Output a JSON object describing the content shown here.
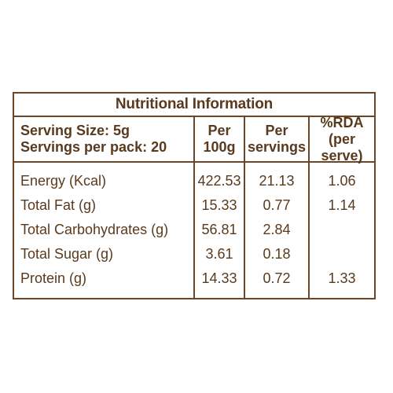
{
  "title": "Nutritional Information",
  "header": {
    "serving_size": "Serving Size: 5g",
    "servings_per_pack": "Servings per pack: 20",
    "col1_line1": "Per",
    "col1_line2": "100g",
    "col2_line1": "Per",
    "col2_line2": "servings",
    "col3_line1": "%RDA",
    "col3_line2": "(per serve)"
  },
  "rows": [
    {
      "label": "Energy (Kcal)",
      "per100g": "422.53",
      "perServing": "21.13",
      "rda": "1.06"
    },
    {
      "label": "Total Fat (g)",
      "per100g": "15.33",
      "perServing": "0.77",
      "rda": "1.14"
    },
    {
      "label": "Total Carbohydrates (g)",
      "per100g": "56.81",
      "perServing": "2.84",
      "rda": ""
    },
    {
      "label": "Total Sugar (g)",
      "per100g": "3.61",
      "perServing": "0.18",
      "rda": ""
    },
    {
      "label": "Protein (g)",
      "per100g": "14.33",
      "perServing": "0.72",
      "rda": "1.33"
    }
  ],
  "colors": {
    "text": "#5a3a1e",
    "border": "#6b4526"
  }
}
